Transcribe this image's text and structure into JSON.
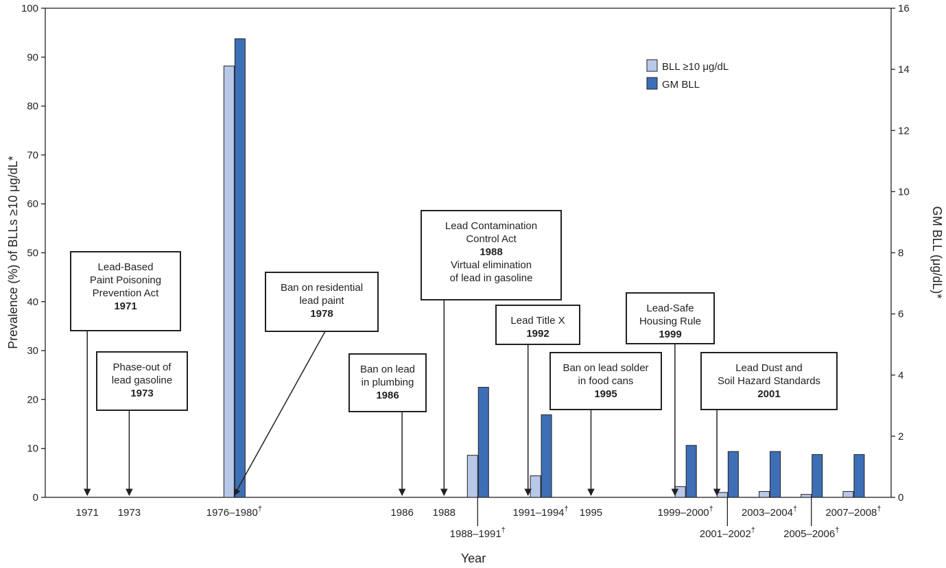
{
  "chart_data": {
    "type": "bar",
    "xlabel": "Year",
    "ylabel": "Prevalence (%) of BLLs ≥10 μg/dL*",
    "y2label": "GM BLL (μg/dL)*",
    "ylim": [
      0,
      100
    ],
    "y2lim": [
      0,
      16
    ],
    "yticks": [
      0,
      10,
      20,
      30,
      40,
      50,
      60,
      70,
      80,
      90,
      100
    ],
    "y2ticks": [
      0,
      2,
      4,
      6,
      8,
      10,
      12,
      14,
      16
    ],
    "x_range": [
      1969,
      2009.3
    ],
    "legend_position": "top-right",
    "series": [
      {
        "name": "BLL ≥10 μg/dL",
        "axis": "left",
        "color": "#b8c8e8"
      },
      {
        "name": "GM BLL",
        "axis": "right",
        "color": "#3d6fb6"
      }
    ],
    "periods": [
      {
        "label": "1976–1980",
        "marker": "†",
        "x": 1978,
        "prevalence": 88.2,
        "gm": 15.0,
        "label_row": 0
      },
      {
        "label": "1988–1991",
        "marker": "†",
        "x": 1989.6,
        "prevalence": 8.6,
        "gm": 3.6,
        "label_row": 1
      },
      {
        "label": "1991–1994",
        "marker": "†",
        "x": 1992.6,
        "prevalence": 4.4,
        "gm": 2.7,
        "label_row": 0
      },
      {
        "label": "1999–2000",
        "marker": "†",
        "x": 1999.5,
        "prevalence": 2.2,
        "gm": 1.7,
        "label_row": 0
      },
      {
        "label": "2001–2002",
        "marker": "†",
        "x": 2001.5,
        "prevalence": 1.0,
        "gm": 1.5,
        "label_row": 1
      },
      {
        "label": "2003–2004",
        "marker": "†",
        "x": 2003.5,
        "prevalence": 1.2,
        "gm": 1.5,
        "label_row": 0
      },
      {
        "label": "2005–2006",
        "marker": "†",
        "x": 2005.5,
        "prevalence": 0.6,
        "gm": 1.4,
        "label_row": 1
      },
      {
        "label": "2007–2008",
        "marker": "†",
        "x": 2007.5,
        "prevalence": 1.2,
        "gm": 1.4,
        "label_row": 0
      }
    ],
    "year_ticks": [
      {
        "label": "1971",
        "x": 1971
      },
      {
        "label": "1973",
        "x": 1973
      },
      {
        "label": "1986",
        "x": 1986
      },
      {
        "label": "1988",
        "x": 1988
      },
      {
        "label": "1995",
        "x": 1995
      }
    ],
    "annotations": [
      {
        "id": "lbppa",
        "lines": [
          "Lead-Based",
          "Paint Poisoning",
          "Prevention Act"
        ],
        "year": "1971",
        "point_x": 1971
      },
      {
        "id": "phaseout",
        "lines": [
          "Phase-out of",
          "lead gasoline"
        ],
        "year": "1973",
        "point_x": 1973
      },
      {
        "id": "paint-ban",
        "lines": [
          "Ban on residential",
          "lead paint"
        ],
        "year": "1978",
        "point_x": 1978
      },
      {
        "id": "plumbing",
        "lines": [
          "Ban on lead",
          "in plumbing"
        ],
        "year": "1986",
        "point_x": 1986
      },
      {
        "id": "lcca",
        "lines": [
          "Lead Contamination",
          "Control Act"
        ],
        "year": "1988",
        "extra_lines": [
          "Virtual elimination",
          "of lead in gasoline"
        ],
        "point_x": 1988
      },
      {
        "id": "titlex",
        "lines": [
          "Lead Title X"
        ],
        "year": "1992",
        "point_x": 1992
      },
      {
        "id": "solder",
        "lines": [
          "Ban on lead solder",
          "in food cans"
        ],
        "year": "1995",
        "point_x": 1995
      },
      {
        "id": "lshr",
        "lines": [
          "Lead-Safe",
          "Housing Rule"
        ],
        "year": "1999",
        "point_x": 1999
      },
      {
        "id": "dust",
        "lines": [
          "Lead Dust and",
          "Soil Hazard Standards"
        ],
        "year": "2001",
        "point_x": 2001
      }
    ]
  }
}
